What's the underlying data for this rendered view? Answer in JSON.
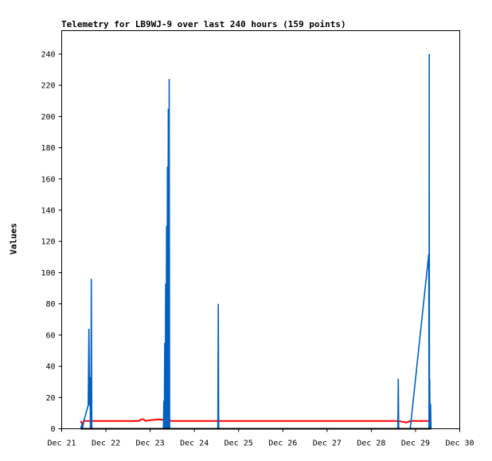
{
  "chart_data": {
    "type": "line",
    "title": "Telemetry for LB9WJ-9 over last 240 hours (159 points)",
    "xlabel": "",
    "ylabel": "Values",
    "x_ticks": [
      "Dec 21",
      "Dec 22",
      "Dec 23",
      "Dec 24",
      "Dec 25",
      "Dec 26",
      "Dec 27",
      "Dec 28",
      "Dec 29",
      "Dec 30"
    ],
    "y_ticks": [
      0,
      20,
      40,
      60,
      80,
      100,
      120,
      140,
      160,
      180,
      200,
      220,
      240
    ],
    "xlim": [
      21,
      30
    ],
    "ylim": [
      0,
      255
    ],
    "grid": false,
    "series": [
      {
        "name": "",
        "color": "#ff0000",
        "points": [
          [
            21.43,
            5
          ],
          [
            21.47,
            3
          ],
          [
            21.5,
            5
          ],
          [
            21.6,
            5
          ],
          [
            21.65,
            5
          ],
          [
            21.7,
            5
          ],
          [
            22.0,
            5
          ],
          [
            22.5,
            5
          ],
          [
            22.75,
            5
          ],
          [
            22.8,
            6
          ],
          [
            22.85,
            6
          ],
          [
            22.9,
            5
          ],
          [
            23.0,
            5.5
          ],
          [
            23.2,
            6
          ],
          [
            23.35,
            5.5
          ],
          [
            23.5,
            5
          ],
          [
            24.0,
            5
          ],
          [
            24.5,
            5
          ],
          [
            25.0,
            5
          ],
          [
            26.0,
            5
          ],
          [
            27.0,
            5
          ],
          [
            28.0,
            5
          ],
          [
            28.6,
            5
          ],
          [
            28.7,
            4.5
          ],
          [
            28.8,
            4
          ],
          [
            28.88,
            5
          ],
          [
            29.0,
            5
          ],
          [
            29.2,
            5
          ],
          [
            29.33,
            5
          ]
        ]
      },
      {
        "name": "",
        "color": "#0060c0",
        "points": [
          [
            21.43,
            0
          ],
          [
            21.45,
            2
          ],
          [
            21.47,
            0
          ],
          [
            21.5,
            5
          ],
          [
            21.6,
            15
          ],
          [
            21.615,
            64
          ],
          [
            21.63,
            15
          ],
          [
            21.64,
            33
          ],
          [
            21.65,
            0
          ],
          [
            21.66,
            0
          ],
          [
            21.67,
            96
          ],
          [
            21.68,
            0
          ],
          [
            23.3,
            0
          ],
          [
            23.31,
            18
          ],
          [
            23.32,
            0
          ],
          [
            23.33,
            55
          ],
          [
            23.34,
            0
          ],
          [
            23.35,
            93
          ],
          [
            23.36,
            0
          ],
          [
            23.37,
            130
          ],
          [
            23.38,
            0
          ],
          [
            23.39,
            168
          ],
          [
            23.4,
            0
          ],
          [
            23.41,
            205
          ],
          [
            23.42,
            0
          ],
          [
            23.43,
            224
          ],
          [
            23.44,
            0
          ],
          [
            24.53,
            0
          ],
          [
            24.54,
            80
          ],
          [
            24.55,
            0
          ],
          [
            28.6,
            0
          ],
          [
            28.61,
            32
          ],
          [
            28.62,
            0
          ],
          [
            28.88,
            0
          ],
          [
            29.3,
            112
          ],
          [
            29.305,
            0
          ],
          [
            29.31,
            240
          ],
          [
            29.315,
            0
          ],
          [
            29.32,
            32
          ],
          [
            29.33,
            0
          ],
          [
            29.34,
            16
          ],
          [
            29.35,
            0
          ]
        ]
      },
      {
        "name": "",
        "color": "#000000",
        "points": [
          [
            21.43,
            0
          ],
          [
            29.35,
            0
          ]
        ]
      }
    ]
  }
}
